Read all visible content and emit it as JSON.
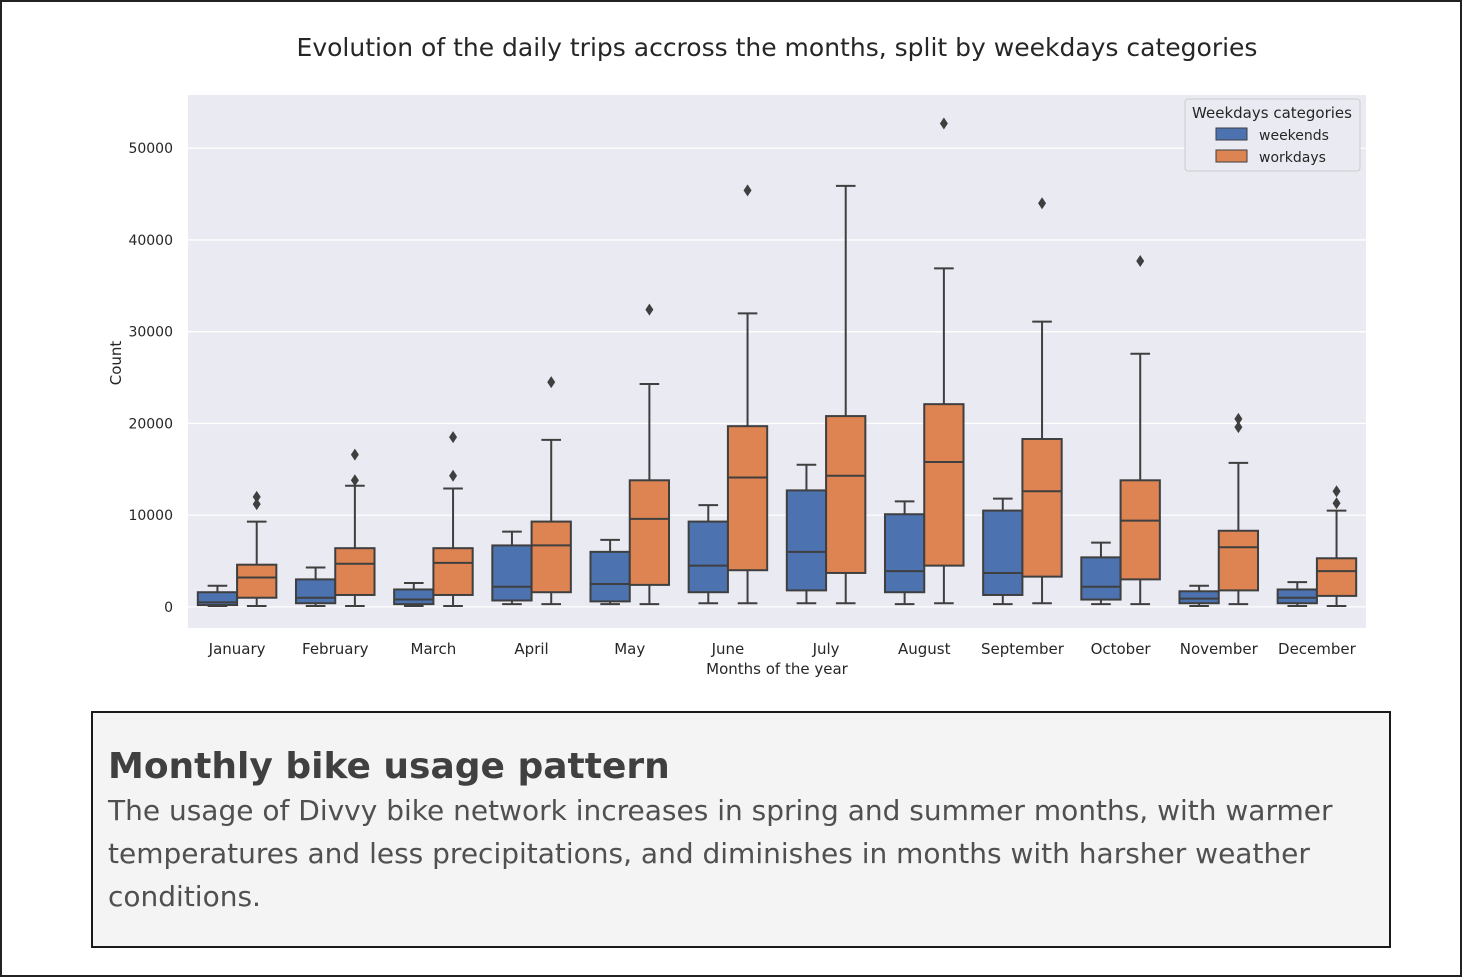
{
  "caption": {
    "title": "Monthly bike usage pattern",
    "text": "The usage of Divvy bike network increases in spring and summer months, with warmer temperatures and less precipitations, and diminishes in months with harsher weather conditions."
  },
  "chart_data": {
    "type": "box",
    "title": "Evolution of the daily trips accross the months, split by weekdays categories",
    "xlabel": "Months of the year",
    "ylabel": "Count",
    "ylim": [
      -2300,
      55800
    ],
    "yticks": [
      0,
      10000,
      20000,
      30000,
      40000,
      50000
    ],
    "grid": true,
    "legend": {
      "title": "Weekdays categories",
      "position": "top-right"
    },
    "categories": [
      "January",
      "February",
      "March",
      "April",
      "May",
      "June",
      "July",
      "August",
      "September",
      "October",
      "November",
      "December"
    ],
    "series": [
      {
        "name": "weekends",
        "color": "#4c72b0",
        "boxes": [
          {
            "wlo": 100,
            "q1": 200,
            "med": 500,
            "q3": 1600,
            "whi": 2300,
            "outliers": []
          },
          {
            "wlo": 100,
            "q1": 400,
            "med": 1000,
            "q3": 3000,
            "whi": 4300,
            "outliers": []
          },
          {
            "wlo": 100,
            "q1": 300,
            "med": 800,
            "q3": 1900,
            "whi": 2600,
            "outliers": []
          },
          {
            "wlo": 300,
            "q1": 700,
            "med": 2200,
            "q3": 6700,
            "whi": 8200,
            "outliers": []
          },
          {
            "wlo": 300,
            "q1": 600,
            "med": 2500,
            "q3": 6000,
            "whi": 7300,
            "outliers": []
          },
          {
            "wlo": 400,
            "q1": 1600,
            "med": 4500,
            "q3": 9300,
            "whi": 11100,
            "outliers": []
          },
          {
            "wlo": 400,
            "q1": 1800,
            "med": 6000,
            "q3": 12700,
            "whi": 15500,
            "outliers": []
          },
          {
            "wlo": 300,
            "q1": 1600,
            "med": 3900,
            "q3": 10100,
            "whi": 11500,
            "outliers": []
          },
          {
            "wlo": 300,
            "q1": 1300,
            "med": 3700,
            "q3": 10500,
            "whi": 11800,
            "outliers": []
          },
          {
            "wlo": 300,
            "q1": 800,
            "med": 2200,
            "q3": 5400,
            "whi": 7000,
            "outliers": []
          },
          {
            "wlo": 100,
            "q1": 400,
            "med": 900,
            "q3": 1700,
            "whi": 2300,
            "outliers": []
          },
          {
            "wlo": 100,
            "q1": 400,
            "med": 1000,
            "q3": 1900,
            "whi": 2700,
            "outliers": []
          }
        ]
      },
      {
        "name": "workdays",
        "color": "#dd8452",
        "boxes": [
          {
            "wlo": 100,
            "q1": 1000,
            "med": 3200,
            "q3": 4600,
            "whi": 9300,
            "outliers": [
              11200,
              12000
            ]
          },
          {
            "wlo": 100,
            "q1": 1300,
            "med": 4700,
            "q3": 6400,
            "whi": 13200,
            "outliers": [
              13800,
              16600
            ]
          },
          {
            "wlo": 100,
            "q1": 1300,
            "med": 4800,
            "q3": 6400,
            "whi": 12900,
            "outliers": [
              14300,
              18500
            ]
          },
          {
            "wlo": 300,
            "q1": 1600,
            "med": 6700,
            "q3": 9300,
            "whi": 18200,
            "outliers": [
              24500
            ]
          },
          {
            "wlo": 300,
            "q1": 2400,
            "med": 9600,
            "q3": 13800,
            "whi": 24300,
            "outliers": [
              32400
            ]
          },
          {
            "wlo": 400,
            "q1": 4000,
            "med": 14100,
            "q3": 19700,
            "whi": 32000,
            "outliers": [
              45400
            ]
          },
          {
            "wlo": 400,
            "q1": 3700,
            "med": 14300,
            "q3": 20800,
            "whi": 45900,
            "outliers": []
          },
          {
            "wlo": 400,
            "q1": 4500,
            "med": 15800,
            "q3": 22100,
            "whi": 36900,
            "outliers": [
              52700
            ]
          },
          {
            "wlo": 400,
            "q1": 3300,
            "med": 12600,
            "q3": 18300,
            "whi": 31100,
            "outliers": [
              44000
            ]
          },
          {
            "wlo": 300,
            "q1": 3000,
            "med": 9400,
            "q3": 13800,
            "whi": 27600,
            "outliers": [
              37700
            ]
          },
          {
            "wlo": 300,
            "q1": 1800,
            "med": 6500,
            "q3": 8300,
            "whi": 15700,
            "outliers": [
              19600,
              20500
            ]
          },
          {
            "wlo": 100,
            "q1": 1200,
            "med": 3900,
            "q3": 5300,
            "whi": 10500,
            "outliers": [
              11300,
              12600
            ]
          }
        ]
      }
    ]
  }
}
